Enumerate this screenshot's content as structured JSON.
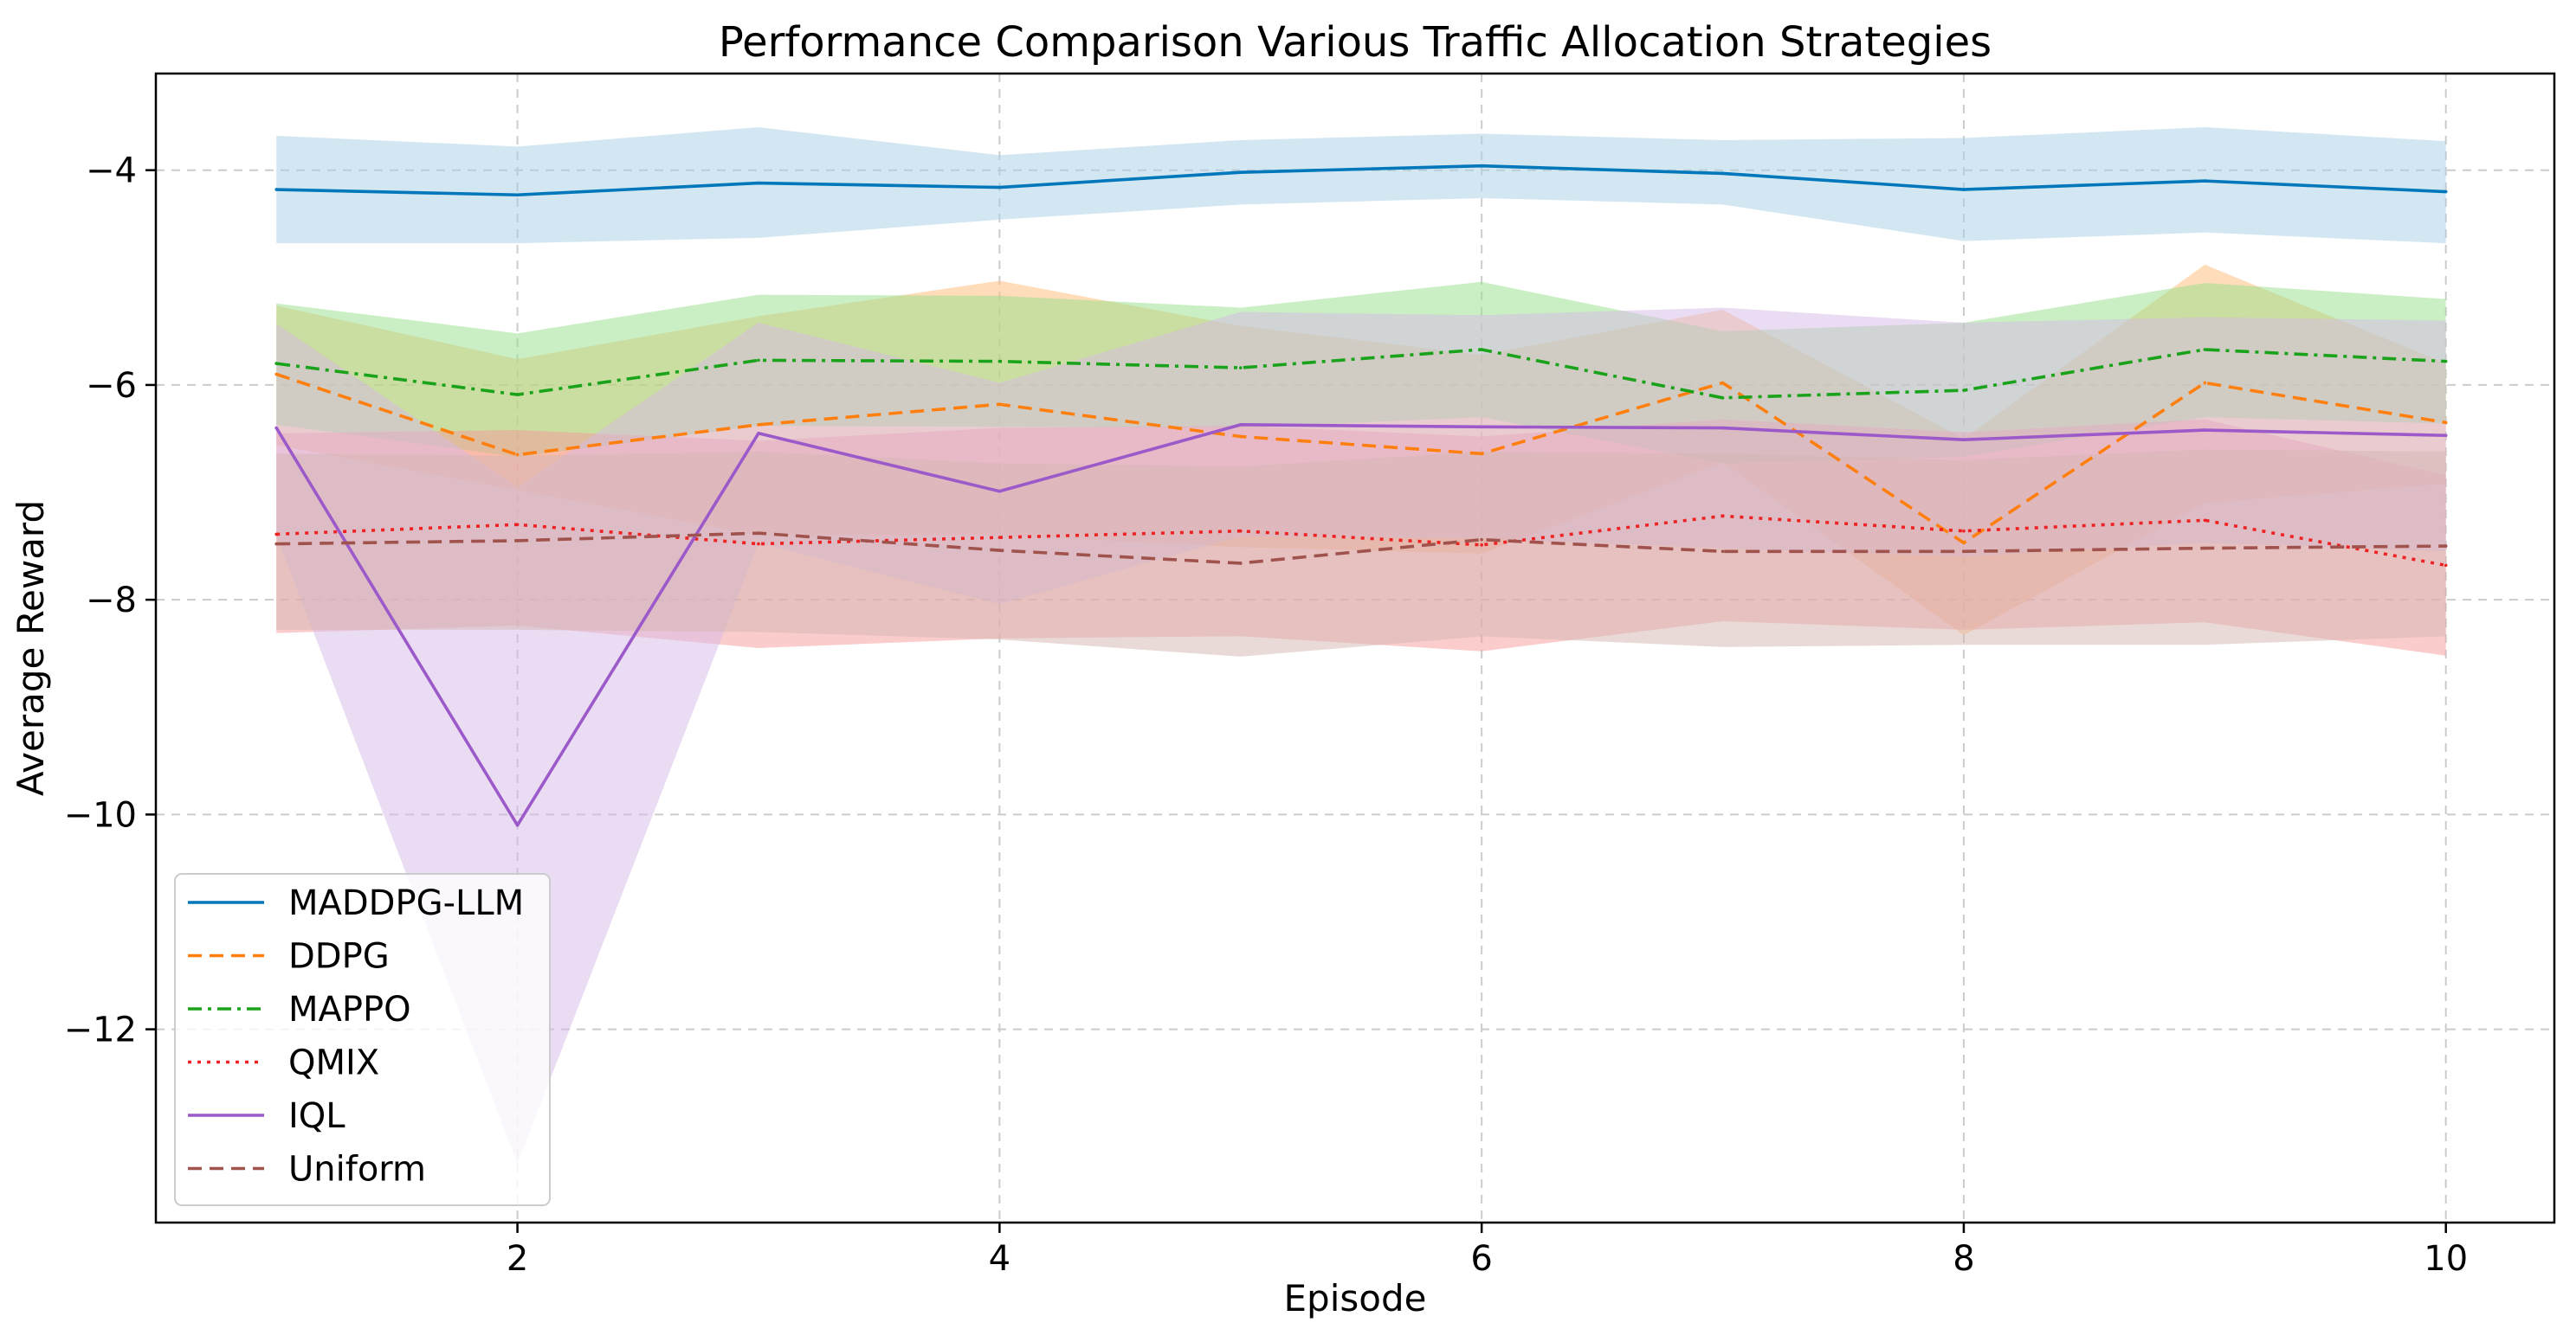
{
  "chart_data": {
    "type": "line",
    "title": "Performance Comparison Various Traffic Allocation Strategies",
    "xlabel": "Episode",
    "ylabel": "Average Reward",
    "xlim": [
      0.5,
      10.45
    ],
    "ylim": [
      -13.8,
      -3.1
    ],
    "x": [
      1,
      2,
      3,
      4,
      5,
      6,
      7,
      8,
      9,
      10
    ],
    "x_ticks": [
      2,
      4,
      6,
      8,
      10
    ],
    "x_tick_labels": [
      "2",
      "4",
      "6",
      "8",
      "10"
    ],
    "y_ticks": [
      -4,
      -6,
      -8,
      -10,
      -12
    ],
    "y_tick_labels": [
      "−4",
      "−6",
      "−8",
      "−10",
      "−12"
    ],
    "grid": true,
    "legend_position": "lower-left",
    "series": [
      {
        "name": "MADDPG-LLM",
        "color": "#0077bb",
        "band_color": "#a6cfe5",
        "dash": "solid",
        "values": [
          -4.18,
          -4.23,
          -4.12,
          -4.16,
          -4.02,
          -3.96,
          -4.03,
          -4.18,
          -4.1,
          -4.2
        ],
        "band_upper": [
          -3.68,
          -3.78,
          -3.6,
          -3.86,
          -3.72,
          -3.66,
          -3.72,
          -3.7,
          -3.6,
          -3.73
        ],
        "band_lower": [
          -4.68,
          -4.68,
          -4.63,
          -4.46,
          -4.32,
          -4.26,
          -4.32,
          -4.66,
          -4.58,
          -4.68
        ]
      },
      {
        "name": "DDPG",
        "color": "#ff7f0e",
        "band_color": "#ffbb78",
        "dash": "dashed",
        "values": [
          -5.9,
          -6.65,
          -6.37,
          -6.18,
          -6.48,
          -6.64,
          -5.98,
          -7.47,
          -5.98,
          -6.35
        ],
        "band_upper": [
          -5.26,
          -5.76,
          -5.36,
          -5.03,
          -5.45,
          -5.72,
          -5.3,
          -6.5,
          -4.88,
          -5.8
        ],
        "band_lower": [
          -6.56,
          -6.98,
          -7.4,
          -7.4,
          -7.51,
          -7.57,
          -6.72,
          -8.33,
          -7.1,
          -6.92
        ]
      },
      {
        "name": "MAPPO",
        "color": "#1aa31a",
        "band_color": "#98df8a",
        "dash": "dashdot",
        "values": [
          -5.8,
          -6.09,
          -5.77,
          -5.78,
          -5.84,
          -5.67,
          -6.12,
          -6.05,
          -5.67,
          -5.78
        ],
        "band_upper": [
          -5.24,
          -5.52,
          -5.16,
          -5.17,
          -5.28,
          -5.04,
          -5.5,
          -5.42,
          -5.05,
          -5.2
        ],
        "band_lower": [
          -6.37,
          -6.67,
          -6.38,
          -6.39,
          -6.4,
          -6.3,
          -6.73,
          -6.67,
          -6.3,
          -6.36
        ]
      },
      {
        "name": "QMIX",
        "color": "#ee2222",
        "band_color": "#f59a9a",
        "dash": "dotted",
        "values": [
          -7.39,
          -7.3,
          -7.48,
          -7.42,
          -7.36,
          -7.49,
          -7.22,
          -7.36,
          -7.26,
          -7.68
        ],
        "band_upper": [
          -6.45,
          -6.42,
          -6.52,
          -6.4,
          -6.38,
          -6.48,
          -6.32,
          -6.44,
          -6.32,
          -6.84
        ],
        "band_lower": [
          -8.31,
          -8.24,
          -8.45,
          -8.36,
          -8.34,
          -8.48,
          -8.2,
          -8.28,
          -8.21,
          -8.52
        ]
      },
      {
        "name": "IQL",
        "color": "#9c59c9",
        "band_color": "#d5b9e6",
        "dash": "solid",
        "values": [
          -6.4,
          -10.1,
          -6.45,
          -6.99,
          -6.37,
          -6.39,
          -6.4,
          -6.51,
          -6.42,
          -6.47
        ],
        "band_upper": [
          -5.43,
          -6.95,
          -5.42,
          -5.98,
          -5.32,
          -5.35,
          -5.28,
          -5.42,
          -5.37,
          -5.4
        ],
        "band_lower": [
          -7.4,
          -13.25,
          -7.47,
          -8.04,
          -7.41,
          -7.43,
          -7.52,
          -7.6,
          -7.47,
          -7.55
        ]
      },
      {
        "name": "Uniform",
        "color": "#a0524d",
        "band_color": "#d4b5b1",
        "dash": "dashed",
        "values": [
          -7.48,
          -7.45,
          -7.38,
          -7.54,
          -7.66,
          -7.44,
          -7.55,
          -7.55,
          -7.52,
          -7.5
        ],
        "band_upper": [
          -6.64,
          -6.66,
          -6.62,
          -6.73,
          -6.76,
          -6.62,
          -6.64,
          -6.7,
          -6.6,
          -6.62
        ],
        "band_lower": [
          -8.28,
          -8.28,
          -8.3,
          -8.37,
          -8.53,
          -8.34,
          -8.44,
          -8.42,
          -8.42,
          -8.34
        ]
      }
    ]
  }
}
